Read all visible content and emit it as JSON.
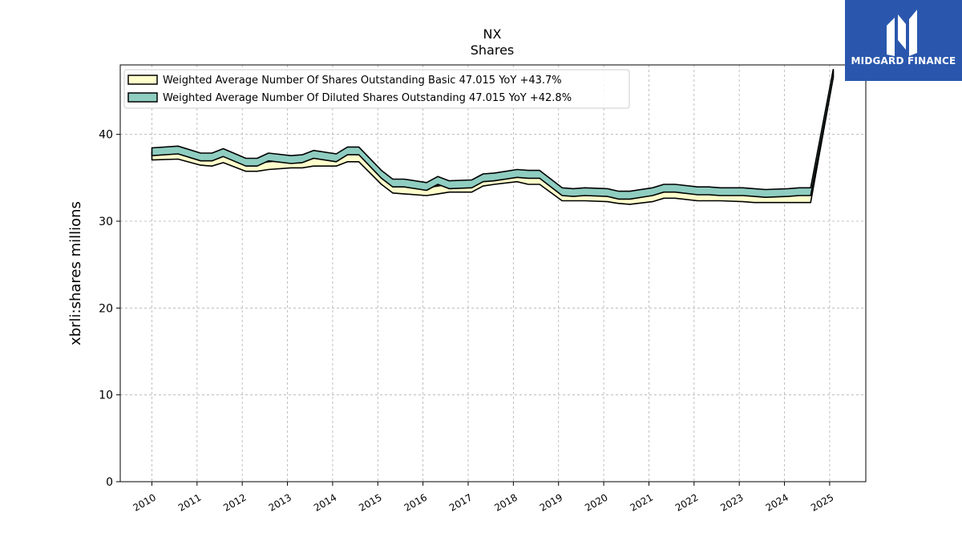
{
  "colors": {
    "basic_fill": "#ffffcc",
    "diluted_fill": "#8ecdc0",
    "logo_bg": "#2a57ad"
  },
  "logo": {
    "text": "MIDGARD FINANCE",
    "icon": "midgard-logo-icon"
  },
  "chart_data": {
    "type": "line",
    "title": "NX",
    "subtitle": "Shares",
    "ylabel": "xbrli:shares millions",
    "xlabel": "",
    "ylim": [
      0,
      48
    ],
    "xlim": [
      2009.3,
      2025.8
    ],
    "yticks": [
      0,
      10,
      20,
      30,
      40
    ],
    "xticks": [
      "2010",
      "2011",
      "2012",
      "2013",
      "2014",
      "2015",
      "2016",
      "2017",
      "2018",
      "2019",
      "2020",
      "2021",
      "2022",
      "2023",
      "2024",
      "2025"
    ],
    "grid": true,
    "legend_position": "top-left",
    "legend": [
      "Weighted Average Number Of Shares Outstanding Basic  47.015 YoY +43.7%",
      "Weighted Average Number Of Diluted Shares Outstanding  47.015 YoY +42.8%"
    ],
    "series": [
      {
        "name": "Weighted Average Number Of Shares Outstanding Basic",
        "x": [
          2010.0,
          2010.58,
          2011.08,
          2011.33,
          2011.58,
          2012.08,
          2012.33,
          2012.58,
          2013.08,
          2013.33,
          2013.58,
          2014.08,
          2014.33,
          2014.58,
          2015.08,
          2015.33,
          2015.58,
          2016.08,
          2016.33,
          2016.58,
          2017.08,
          2017.33,
          2017.58,
          2018.08,
          2018.33,
          2018.58,
          2019.08,
          2019.33,
          2019.58,
          2020.08,
          2020.33,
          2020.58,
          2021.08,
          2021.33,
          2021.58,
          2022.08,
          2022.33,
          2022.58,
          2023.08,
          2023.33,
          2023.58,
          2024.08,
          2024.33,
          2024.58,
          2025.08
        ],
        "values": [
          37.5,
          37.6,
          36.9,
          36.8,
          37.2,
          36.2,
          36.2,
          36.4,
          36.6,
          36.6,
          36.8,
          36.8,
          37.3,
          37.3,
          34.7,
          33.7,
          33.6,
          33.4,
          33.6,
          33.8,
          33.8,
          34.5,
          34.7,
          35.0,
          34.7,
          34.7,
          32.8,
          32.8,
          32.8,
          32.7,
          32.5,
          32.4,
          32.7,
          33.1,
          33.1,
          32.8,
          32.8,
          32.8,
          32.7,
          32.6,
          32.6,
          32.6,
          32.6,
          32.6,
          47.015
        ]
      },
      {
        "name": "Weighted Average Number Of Diluted Shares Outstanding",
        "x": [
          2010.0,
          2010.58,
          2011.08,
          2011.33,
          2011.58,
          2012.08,
          2012.33,
          2012.58,
          2013.08,
          2013.33,
          2013.58,
          2014.08,
          2014.33,
          2014.58,
          2015.08,
          2015.33,
          2015.58,
          2016.08,
          2016.33,
          2016.58,
          2017.08,
          2017.33,
          2017.58,
          2018.08,
          2018.33,
          2018.58,
          2019.08,
          2019.33,
          2019.58,
          2020.08,
          2020.33,
          2020.58,
          2021.08,
          2021.33,
          2021.58,
          2022.08,
          2022.33,
          2022.58,
          2023.08,
          2023.33,
          2023.58,
          2024.08,
          2024.33,
          2024.58,
          2025.08
        ],
        "values": [
          38.0,
          38.2,
          37.4,
          37.4,
          37.9,
          36.8,
          36.8,
          37.4,
          37.1,
          37.2,
          37.7,
          37.3,
          38.1,
          38.1,
          35.4,
          34.4,
          34.4,
          34.0,
          34.7,
          34.2,
          34.3,
          35.0,
          35.1,
          35.5,
          35.4,
          35.4,
          33.4,
          33.3,
          33.4,
          33.3,
          33.0,
          33.0,
          33.4,
          33.8,
          33.8,
          33.5,
          33.5,
          33.4,
          33.4,
          33.3,
          33.2,
          33.3,
          33.4,
          33.4,
          47.015
        ]
      }
    ]
  }
}
